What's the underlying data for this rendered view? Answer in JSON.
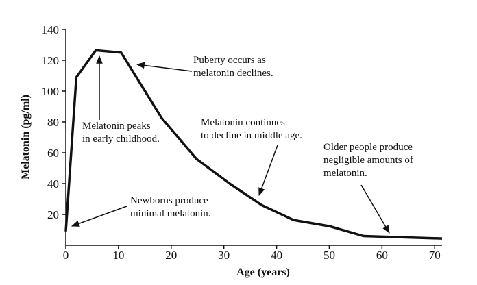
{
  "chart_data": {
    "type": "line",
    "x": [
      0,
      2,
      5.7,
      10.5,
      18.2,
      24.8,
      31.1,
      37.2,
      43.2,
      50,
      56.5,
      71.4
    ],
    "series": [
      {
        "name": "Melatonin",
        "color": "#111111",
        "values": [
          9,
          109,
          126.5,
          125,
          82.5,
          56,
          40,
          26,
          16.4,
          12.4,
          6,
          4.4
        ]
      }
    ],
    "xlim": [
      0,
      71.4
    ],
    "ylim": [
      0,
      140
    ],
    "xticks": [
      0,
      10,
      20,
      30,
      40,
      50,
      60,
      70
    ],
    "yticks": [
      20,
      40,
      60,
      80,
      100,
      120,
      140
    ],
    "xlabel": "Age (years)",
    "ylabel": "Melatonin (pg/ml)",
    "annotations": [
      [
        "Puberty occurs as",
        "melatonin declines."
      ],
      [
        "Melatonin peaks",
        "in early childhood."
      ],
      [
        "Melatonin continues",
        "to decline in middle age."
      ],
      [
        "Older people produce",
        "negligible amounts of",
        "melatonin."
      ],
      [
        "Newborns produce",
        "minimal melatonin."
      ]
    ]
  }
}
